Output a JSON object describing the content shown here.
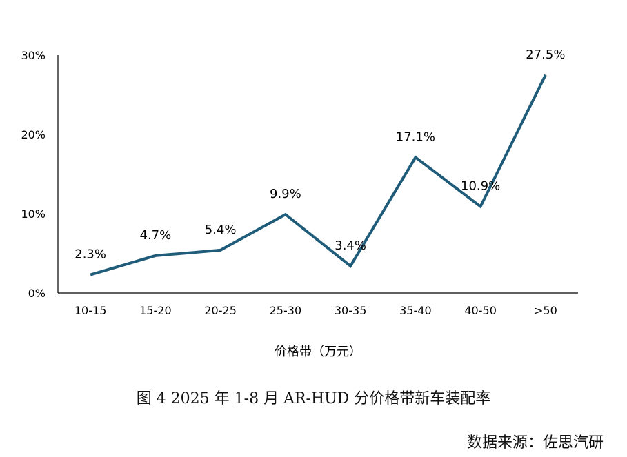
{
  "chart_data": {
    "type": "line",
    "xlabel": "价格带（万元）",
    "categories": [
      "10-15",
      "15-20",
      "20-25",
      "25-30",
      "30-35",
      "35-40",
      "40-50",
      ">50"
    ],
    "values": [
      2.3,
      4.7,
      5.4,
      9.9,
      3.4,
      17.1,
      10.9,
      27.5
    ],
    "data_labels": [
      "2.3%",
      "4.7%",
      "5.4%",
      "9.9%",
      "3.4%",
      "17.1%",
      "10.9%",
      "27.5%"
    ],
    "y_ticks": [
      "0%",
      "10%",
      "20%",
      "30%"
    ],
    "ylim": [
      0,
      30
    ],
    "grid": false,
    "legend": "none",
    "line_color": "#1f5c7a"
  },
  "caption": "图 4 2025 年 1-8 月 AR-HUD 分价格带新车装配率",
  "source": "数据来源：佐思汽研"
}
